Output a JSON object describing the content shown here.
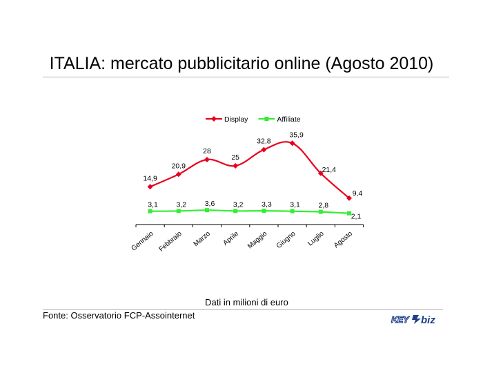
{
  "slide": {
    "title": "ITALIA: mercato pubblicitario online (Agosto 2010)",
    "footnote": "Dati in milioni di euro",
    "source": "Fonte: Osservatorio FCP-Assointernet",
    "logo_text": "KEY4biz"
  },
  "chart_data": {
    "type": "line",
    "title": "",
    "xlabel": "",
    "ylabel": "",
    "categories": [
      "Gennaio",
      "Febbraio",
      "Marzo",
      "Aprile",
      "Maggio",
      "Giugno",
      "Luglio",
      "Agosto"
    ],
    "series": [
      {
        "name": "Display",
        "color": "#e8001c",
        "marker": "diamond",
        "values": [
          14.9,
          20.9,
          28,
          25,
          32.8,
          35.9,
          21.4,
          9.4
        ],
        "labels": [
          "14,9",
          "20,9",
          "28",
          "25",
          "32,8",
          "35,9",
          "21,4",
          "9,4"
        ]
      },
      {
        "name": "Affiliate",
        "color": "#33ee33",
        "marker": "square",
        "values": [
          3.1,
          3.2,
          3.6,
          3.2,
          3.3,
          3.1,
          2.8,
          2.1
        ],
        "labels": [
          "3,1",
          "3,2",
          "3,6",
          "3,2",
          "3,3",
          "3,1",
          "2,8",
          "2,1"
        ]
      }
    ],
    "smoothed": true,
    "ylim": [
      0,
      40
    ],
    "y_axis_visible": false,
    "grid": false,
    "legend_position": "top-center"
  }
}
